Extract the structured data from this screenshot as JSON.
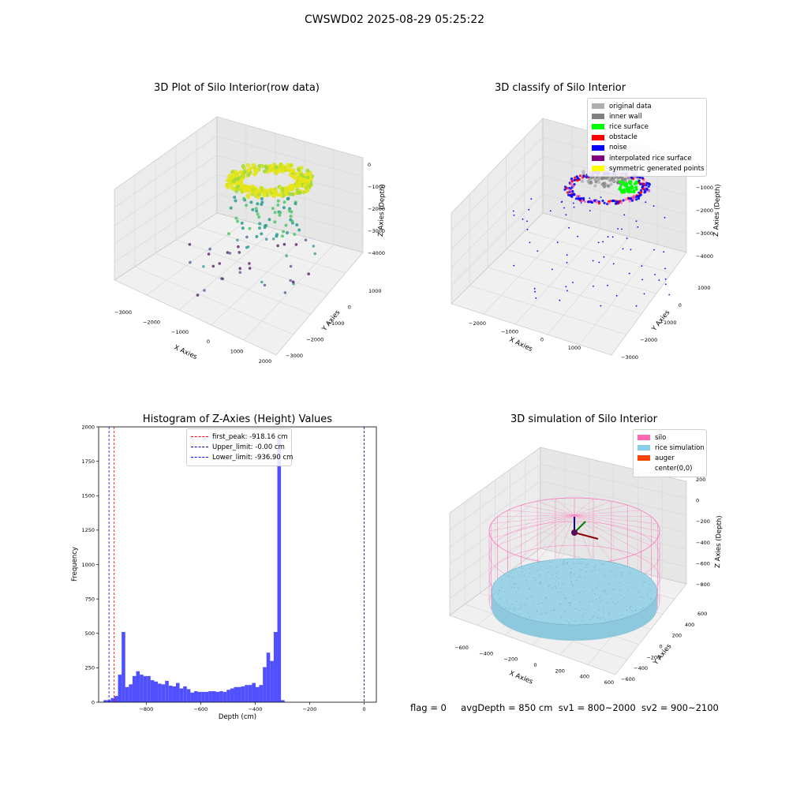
{
  "suptitle": "CWSWD02 2025-08-29 05:25:22",
  "footer": {
    "flag": "flag = 0",
    "avg_depth": "avgDepth = 850 cm",
    "sv1": "sv1 = 800~2000",
    "sv2": "sv2 = 900~2100"
  },
  "chart_data": [
    {
      "type": "scatter",
      "subtype": "3d",
      "title": "3D Plot of Silo Interior(row data)",
      "xlabel": "X Axies",
      "ylabel": "Y Axies",
      "zlabel": "Z Axies (Depth)",
      "x_ticks": [
        "−3000",
        "−2000",
        "−1000",
        "0",
        "1000",
        "2000"
      ],
      "y_ticks": [
        "−3000",
        "−2000",
        "−1000",
        "0",
        "1000"
      ],
      "z_ticks": [
        "0",
        "−1000",
        "−2000",
        "−3000",
        "−4000"
      ],
      "colormap": "viridis",
      "grid": true
    },
    {
      "type": "scatter",
      "subtype": "3d",
      "title": "3D classify of Silo Interior",
      "xlabel": "X Axies",
      "ylabel": "Y Axies",
      "zlabel": "Z Axies (Depth)",
      "x_ticks": [
        "−2000",
        "−1000",
        "0",
        "1000"
      ],
      "y_ticks": [
        "−3000",
        "−2000",
        "−1000",
        "0",
        "1000"
      ],
      "z_ticks": [
        "0",
        "−1000",
        "−2000",
        "−3000",
        "−4000"
      ],
      "legend_position": "top-right",
      "legend": [
        {
          "label": "original data",
          "color": "#b0b0b0"
        },
        {
          "label": "inner wall",
          "color": "#808080"
        },
        {
          "label": "rice surface",
          "color": "#00ff00"
        },
        {
          "label": "obstacle",
          "color": "#ff0000"
        },
        {
          "label": "noise",
          "color": "#0000ff"
        },
        {
          "label": "interpolated rice surface",
          "color": "#800080"
        },
        {
          "label": "symmetric generated points",
          "color": "#ffff00"
        }
      ],
      "grid": true
    },
    {
      "type": "bar",
      "subtype": "histogram",
      "title": "Histogram of Z-Axies (Height) Values",
      "xlabel": "Depth (cm)",
      "ylabel": "Frequency",
      "xlim": [
        -975,
        45
      ],
      "ylim": [
        0,
        2000
      ],
      "x_ticks": [
        -800,
        -600,
        -400,
        -200,
        0
      ],
      "y_ticks": [
        0,
        250,
        500,
        750,
        1000,
        1250,
        1500,
        1750,
        2000
      ],
      "bar_color": "#5050ff",
      "bins": {
        "start": -957,
        "width": 13.3,
        "counts": [
          15,
          15,
          30,
          45,
          200,
          510,
          110,
          130,
          190,
          225,
          200,
          190,
          190,
          160,
          150,
          135,
          130,
          155,
          120,
          115,
          140,
          100,
          115,
          95,
          70,
          80,
          75,
          75,
          75,
          80,
          80,
          75,
          80,
          75,
          90,
          100,
          110,
          110,
          115,
          125,
          125,
          140,
          110,
          125,
          255,
          360,
          300,
          510,
          1910,
          15
        ]
      },
      "vlines": [
        {
          "label": "first_peak: -918.16 cm",
          "x": -918.16,
          "color": "#ff0000"
        },
        {
          "label": "Upper_limit: -0.00 cm",
          "x": 0,
          "color": "#00008b"
        },
        {
          "label": "Lower_limit: -936.90 cm",
          "x": -936.9,
          "color": "#0000ff"
        }
      ],
      "legend_position": "top-center"
    },
    {
      "type": "scatter",
      "subtype": "3d-wireframe",
      "title": "3D simulation of Silo Interior",
      "xlabel": "X Axies",
      "ylabel": "Y Axies",
      "zlabel": "Z Axies (Depth)",
      "x_ticks": [
        "−600",
        "−400",
        "−200",
        "0",
        "200",
        "400",
        "600"
      ],
      "y_ticks": [
        "−600",
        "−400",
        "−200",
        "0",
        "200",
        "400",
        "600"
      ],
      "z_ticks": [
        "200",
        "0",
        "−200",
        "−400",
        "−600",
        "−800"
      ],
      "legend_position": "top-right",
      "legend": [
        {
          "label": "silo",
          "color": "#ff69b4"
        },
        {
          "label": "rice simulation",
          "color": "#87ceeb"
        },
        {
          "label": "auger",
          "color": "#ff4500"
        },
        {
          "label": "center(0,0)",
          "color": "#ffffff"
        }
      ]
    }
  ]
}
